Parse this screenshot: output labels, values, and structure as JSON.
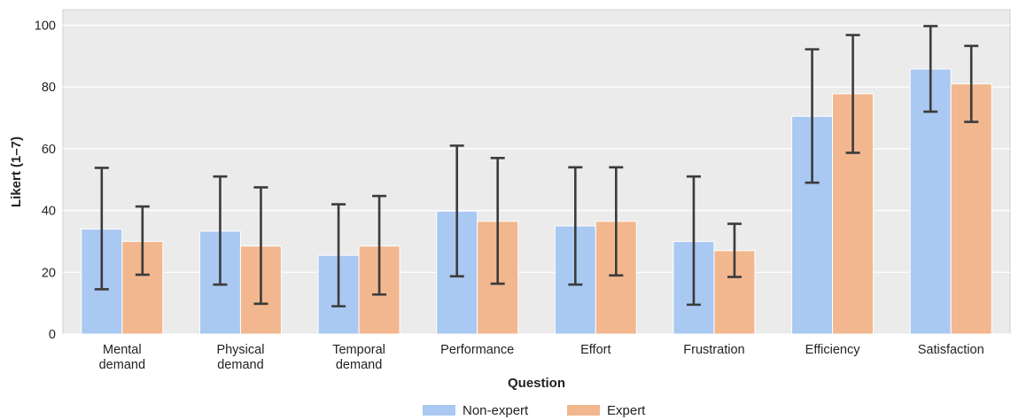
{
  "chart_data": {
    "type": "bar",
    "xlabel": "Question",
    "ylabel": "Likert (1–7)",
    "ylim": [
      0,
      105
    ],
    "yticks": [
      0,
      20,
      40,
      60,
      80,
      100
    ],
    "grid": true,
    "legend_position": "bottom-center",
    "categories": [
      [
        "Mental",
        "demand"
      ],
      [
        "Physical",
        "demand"
      ],
      [
        "Temporal",
        "demand"
      ],
      [
        "Performance"
      ],
      [
        "Effort"
      ],
      [
        "Frustration"
      ],
      [
        "Efficiency"
      ],
      [
        "Satisfaction"
      ]
    ],
    "series": [
      {
        "name": "Non-expert",
        "color": "#a9c9f2",
        "values": [
          34,
          33.3,
          25.5,
          39.8,
          35,
          30,
          70.5,
          85.8
        ],
        "err_low": [
          14.5,
          16,
          9,
          18.7,
          16,
          9.5,
          49,
          72
        ],
        "err_high": [
          53.8,
          51,
          42,
          61,
          54,
          51,
          92.2,
          99.7
        ]
      },
      {
        "name": "Expert",
        "color": "#f2b78f",
        "values": [
          30,
          28.5,
          28.5,
          36.5,
          36.5,
          27,
          77.8,
          81
        ],
        "err_low": [
          19.2,
          9.8,
          12.8,
          16.3,
          19,
          18.5,
          58.7,
          68.7
        ],
        "err_high": [
          41.3,
          47.5,
          44.7,
          57,
          54,
          35.7,
          96.8,
          93.3
        ]
      }
    ]
  }
}
